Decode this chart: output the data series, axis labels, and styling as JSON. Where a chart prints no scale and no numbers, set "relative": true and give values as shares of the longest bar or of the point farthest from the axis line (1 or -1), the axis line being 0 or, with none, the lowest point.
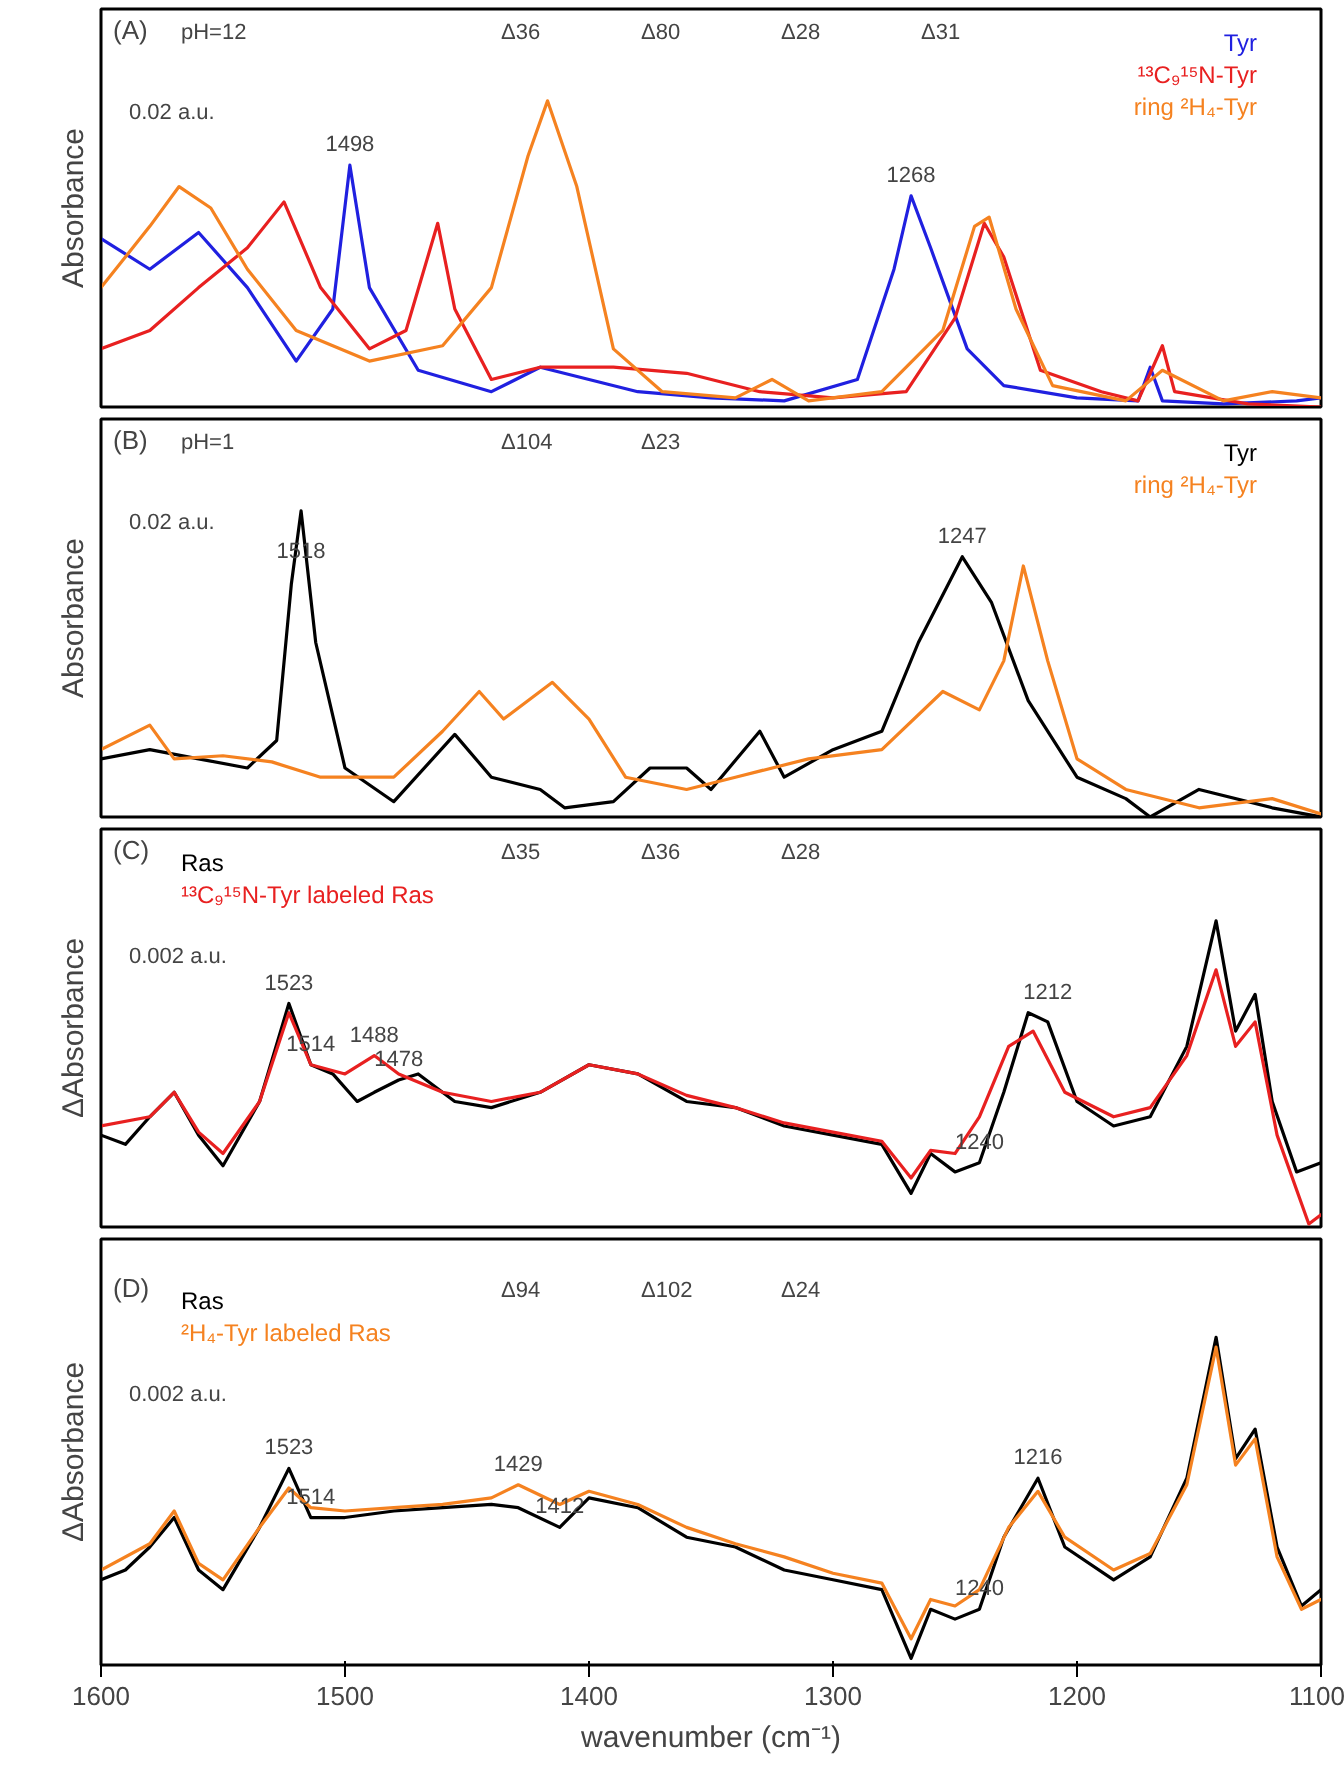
{
  "chart_data": [
    {
      "type": "line",
      "relative": true,
      "ylabel": "Absorbance",
      "xlim": [
        1600,
        1100
      ],
      "tick_labels": false,
      "legend": "top right",
      "grid": false,
      "annotations": [
        "(A)",
        "pH=12",
        "0.02 a.u.",
        {
          "text": "1498",
          "x": 1498,
          "y": 0.79
        },
        {
          "text": "1268",
          "x": 1268,
          "y": 0.69
        },
        "Δ36",
        "Δ80",
        "Δ28",
        "Δ31"
      ],
      "series": [
        {
          "name": "Tyr",
          "color": "#2020e0",
          "x": [
            1600,
            1580,
            1560,
            1540,
            1520,
            1505,
            1498,
            1490,
            1470,
            1440,
            1420,
            1400,
            1380,
            1350,
            1320,
            1290,
            1275,
            1268,
            1260,
            1245,
            1230,
            1200,
            1175,
            1170,
            1165,
            1140,
            1110,
            1100
          ],
          "values": [
            0.55,
            0.45,
            0.57,
            0.39,
            0.15,
            0.32,
            0.79,
            0.39,
            0.12,
            0.05,
            0.13,
            0.09,
            0.05,
            0.03,
            0.02,
            0.09,
            0.45,
            0.69,
            0.52,
            0.19,
            0.07,
            0.03,
            0.02,
            0.13,
            0.02,
            0.01,
            0.02,
            0.03
          ]
        },
        {
          "name": "¹³C₉¹⁵N-Tyr",
          "color": "#e82020",
          "x": [
            1600,
            1580,
            1560,
            1540,
            1525,
            1510,
            1490,
            1475,
            1462,
            1455,
            1440,
            1420,
            1390,
            1360,
            1330,
            1300,
            1270,
            1250,
            1238,
            1230,
            1215,
            1190,
            1175,
            1165,
            1160,
            1130,
            1100
          ],
          "values": [
            0.19,
            0.25,
            0.39,
            0.52,
            0.67,
            0.39,
            0.19,
            0.25,
            0.6,
            0.32,
            0.09,
            0.13,
            0.13,
            0.11,
            0.05,
            0.03,
            0.05,
            0.29,
            0.6,
            0.49,
            0.12,
            0.05,
            0.02,
            0.2,
            0.05,
            0.01,
            0
          ]
        },
        {
          "name": "ring ²H₄-Tyr",
          "color": "#f58220",
          "x": [
            1600,
            1580,
            1568,
            1555,
            1540,
            1520,
            1490,
            1460,
            1440,
            1425,
            1417,
            1405,
            1390,
            1370,
            1340,
            1325,
            1310,
            1280,
            1255,
            1242,
            1236,
            1225,
            1210,
            1180,
            1165,
            1140,
            1120,
            1100
          ],
          "values": [
            0.39,
            0.59,
            0.72,
            0.65,
            0.45,
            0.25,
            0.15,
            0.2,
            0.39,
            0.82,
            1.0,
            0.72,
            0.19,
            0.05,
            0.03,
            0.09,
            0.02,
            0.05,
            0.25,
            0.59,
            0.62,
            0.32,
            0.07,
            0.02,
            0.12,
            0.02,
            0.05,
            0.03
          ]
        }
      ]
    },
    {
      "type": "line",
      "relative": true,
      "ylabel": "Absorbance",
      "xlim": [
        1600,
        1100
      ],
      "tick_labels": false,
      "legend": "top right",
      "grid": false,
      "annotations": [
        "(B)",
        "pH=1",
        "0.02 a.u.",
        {
          "text": "1518",
          "x": 1518,
          "y": 0.8
        },
        {
          "text": "1247",
          "x": 1247,
          "y": 0.85
        },
        "Δ104",
        "Δ23"
      ],
      "series": [
        {
          "name": "Tyr",
          "color": "#000000",
          "x": [
            1600,
            1580,
            1560,
            1540,
            1528,
            1522,
            1518,
            1512,
            1500,
            1480,
            1455,
            1440,
            1420,
            1410,
            1390,
            1375,
            1360,
            1350,
            1330,
            1320,
            1300,
            1280,
            1265,
            1247,
            1235,
            1220,
            1200,
            1180,
            1170,
            1150,
            1120,
            1100
          ],
          "values": [
            0.19,
            0.22,
            0.19,
            0.16,
            0.25,
            0.76,
            1.0,
            0.57,
            0.16,
            0.05,
            0.27,
            0.13,
            0.09,
            0.03,
            0.05,
            0.16,
            0.16,
            0.09,
            0.28,
            0.13,
            0.22,
            0.28,
            0.57,
            0.85,
            0.7,
            0.38,
            0.13,
            0.06,
            0,
            0.09,
            0.03,
            0
          ]
        },
        {
          "name": "ring ²H₄-Tyr",
          "color": "#f58220",
          "x": [
            1600,
            1580,
            1570,
            1550,
            1530,
            1510,
            1480,
            1460,
            1445,
            1435,
            1415,
            1400,
            1385,
            1360,
            1340,
            1310,
            1280,
            1255,
            1240,
            1230,
            1222,
            1212,
            1200,
            1180,
            1150,
            1120,
            1100
          ],
          "values": [
            0.22,
            0.3,
            0.19,
            0.2,
            0.18,
            0.13,
            0.13,
            0.28,
            0.41,
            0.32,
            0.44,
            0.32,
            0.13,
            0.09,
            0.13,
            0.19,
            0.22,
            0.41,
            0.35,
            0.51,
            0.82,
            0.51,
            0.19,
            0.09,
            0.03,
            0.06,
            0.01
          ]
        }
      ]
    },
    {
      "type": "line",
      "relative": true,
      "ylabel": "ΔAbsorbance",
      "xlim": [
        1600,
        1100
      ],
      "tick_labels": false,
      "legend": "top left",
      "grid": false,
      "annotations": [
        "(C)",
        "0.002 a.u.",
        {
          "text": "1523",
          "x": 1523,
          "y": 0.73
        },
        {
          "text": "1488",
          "x": 1488,
          "y": 0.56
        },
        {
          "text": "1514",
          "x": 1514,
          "y": 0.53
        },
        {
          "text": "1478",
          "x": 1478,
          "y": 0.48
        },
        {
          "text": "1212",
          "x": 1212,
          "y": 0.7
        },
        {
          "text": "1240",
          "x": 1240,
          "y": 0.21
        },
        "Δ35",
        "Δ36",
        "Δ28"
      ],
      "series": [
        {
          "name": "Ras",
          "color": "#000000",
          "x": [
            1600,
            1590,
            1580,
            1570,
            1560,
            1550,
            1535,
            1523,
            1514,
            1505,
            1495,
            1488,
            1478,
            1470,
            1455,
            1440,
            1420,
            1400,
            1380,
            1360,
            1340,
            1320,
            1300,
            1280,
            1268,
            1260,
            1250,
            1240,
            1230,
            1220,
            1212,
            1200,
            1185,
            1170,
            1155,
            1143,
            1135,
            1127,
            1120,
            1110,
            1100
          ],
          "values": [
            0.3,
            0.27,
            0.36,
            0.44,
            0.3,
            0.2,
            0.41,
            0.73,
            0.53,
            0.5,
            0.41,
            0.44,
            0.48,
            0.5,
            0.41,
            0.39,
            0.44,
            0.53,
            0.5,
            0.41,
            0.39,
            0.33,
            0.3,
            0.27,
            0.11,
            0.24,
            0.18,
            0.21,
            0.44,
            0.7,
            0.67,
            0.41,
            0.33,
            0.36,
            0.59,
            1.0,
            0.64,
            0.76,
            0.41,
            0.18,
            0.21
          ]
        },
        {
          "name": "¹³C₉¹⁵N-Tyr labeled Ras",
          "color": "#e82020",
          "x": [
            1600,
            1580,
            1570,
            1560,
            1550,
            1535,
            1523,
            1514,
            1500,
            1488,
            1478,
            1460,
            1440,
            1420,
            1400,
            1380,
            1360,
            1340,
            1320,
            1300,
            1280,
            1268,
            1260,
            1250,
            1240,
            1228,
            1218,
            1205,
            1185,
            1170,
            1155,
            1143,
            1135,
            1127,
            1118,
            1105,
            1100
          ],
          "values": [
            0.33,
            0.36,
            0.44,
            0.31,
            0.24,
            0.41,
            0.7,
            0.53,
            0.5,
            0.56,
            0.5,
            0.44,
            0.41,
            0.44,
            0.53,
            0.5,
            0.43,
            0.39,
            0.34,
            0.31,
            0.28,
            0.16,
            0.25,
            0.24,
            0.36,
            0.59,
            0.64,
            0.44,
            0.36,
            0.39,
            0.56,
            0.84,
            0.59,
            0.67,
            0.3,
            0.01,
            0.04
          ]
        }
      ]
    },
    {
      "type": "line",
      "relative": true,
      "ylabel": "ΔAbsorbance",
      "xlabel": "wavenumber (cm⁻¹)",
      "xlim": [
        1600,
        1100
      ],
      "xticks": [
        1600,
        1500,
        1400,
        1300,
        1200,
        1100
      ],
      "tick_labels": "x",
      "legend": "top left",
      "grid": false,
      "annotations": [
        "(D)",
        "0.002 a.u.",
        {
          "text": "1523",
          "x": 1523,
          "y": 0.6
        },
        {
          "text": "1429",
          "x": 1429,
          "y": 0.55
        },
        {
          "text": "1514",
          "x": 1514,
          "y": 0.45
        },
        {
          "text": "1412",
          "x": 1412,
          "y": 0.42
        },
        {
          "text": "1216",
          "x": 1216,
          "y": 0.57
        },
        {
          "text": "1240",
          "x": 1240,
          "y": 0.17
        },
        "Δ94",
        "Δ102",
        "Δ24"
      ],
      "series": [
        {
          "name": "Ras",
          "color": "#000000",
          "x": [
            1600,
            1590,
            1580,
            1570,
            1560,
            1550,
            1535,
            1523,
            1514,
            1500,
            1480,
            1460,
            1440,
            1429,
            1412,
            1400,
            1380,
            1360,
            1340,
            1320,
            1300,
            1280,
            1268,
            1260,
            1250,
            1240,
            1230,
            1216,
            1205,
            1185,
            1170,
            1155,
            1143,
            1135,
            1127,
            1118,
            1108,
            1100
          ],
          "values": [
            0.26,
            0.29,
            0.36,
            0.45,
            0.29,
            0.23,
            0.42,
            0.6,
            0.45,
            0.45,
            0.47,
            0.48,
            0.49,
            0.48,
            0.42,
            0.51,
            0.48,
            0.39,
            0.36,
            0.29,
            0.26,
            0.23,
            0.02,
            0.17,
            0.14,
            0.17,
            0.39,
            0.57,
            0.36,
            0.26,
            0.33,
            0.57,
            1.0,
            0.63,
            0.72,
            0.36,
            0.18,
            0.23
          ]
        },
        {
          "name": "²H₄-Tyr labeled Ras",
          "color": "#f58220",
          "x": [
            1600,
            1580,
            1570,
            1560,
            1550,
            1535,
            1523,
            1514,
            1500,
            1480,
            1460,
            1440,
            1429,
            1412,
            1400,
            1380,
            1360,
            1340,
            1320,
            1300,
            1280,
            1268,
            1260,
            1250,
            1240,
            1228,
            1216,
            1205,
            1185,
            1170,
            1155,
            1143,
            1135,
            1127,
            1118,
            1108,
            1100
          ],
          "values": [
            0.29,
            0.37,
            0.47,
            0.31,
            0.26,
            0.42,
            0.54,
            0.48,
            0.47,
            0.48,
            0.49,
            0.51,
            0.55,
            0.49,
            0.53,
            0.49,
            0.42,
            0.37,
            0.33,
            0.28,
            0.25,
            0.08,
            0.2,
            0.18,
            0.23,
            0.42,
            0.53,
            0.39,
            0.29,
            0.34,
            0.55,
            0.97,
            0.61,
            0.69,
            0.33,
            0.17,
            0.2
          ]
        }
      ]
    }
  ]
}
